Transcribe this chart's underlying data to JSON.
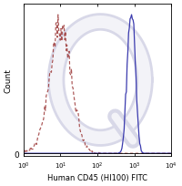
{
  "xlabel": "Human CD45 (HI100) FITC",
  "ylabel": "Count",
  "background_color": "#ffffff",
  "isotype_color": "#a04040",
  "antibody_color": "#3030aa",
  "watermark_color": "#d8d8e8",
  "isotype_peak_log": 1.0,
  "isotype_std_log": 0.3,
  "antibody_peak_log": 2.95,
  "antibody_std_log": 0.09,
  "antibody_peak2_log": 2.82,
  "antibody_peak2_weight": 0.25,
  "xlim": [
    1.0,
    10000.0
  ],
  "n_samples": 10000
}
